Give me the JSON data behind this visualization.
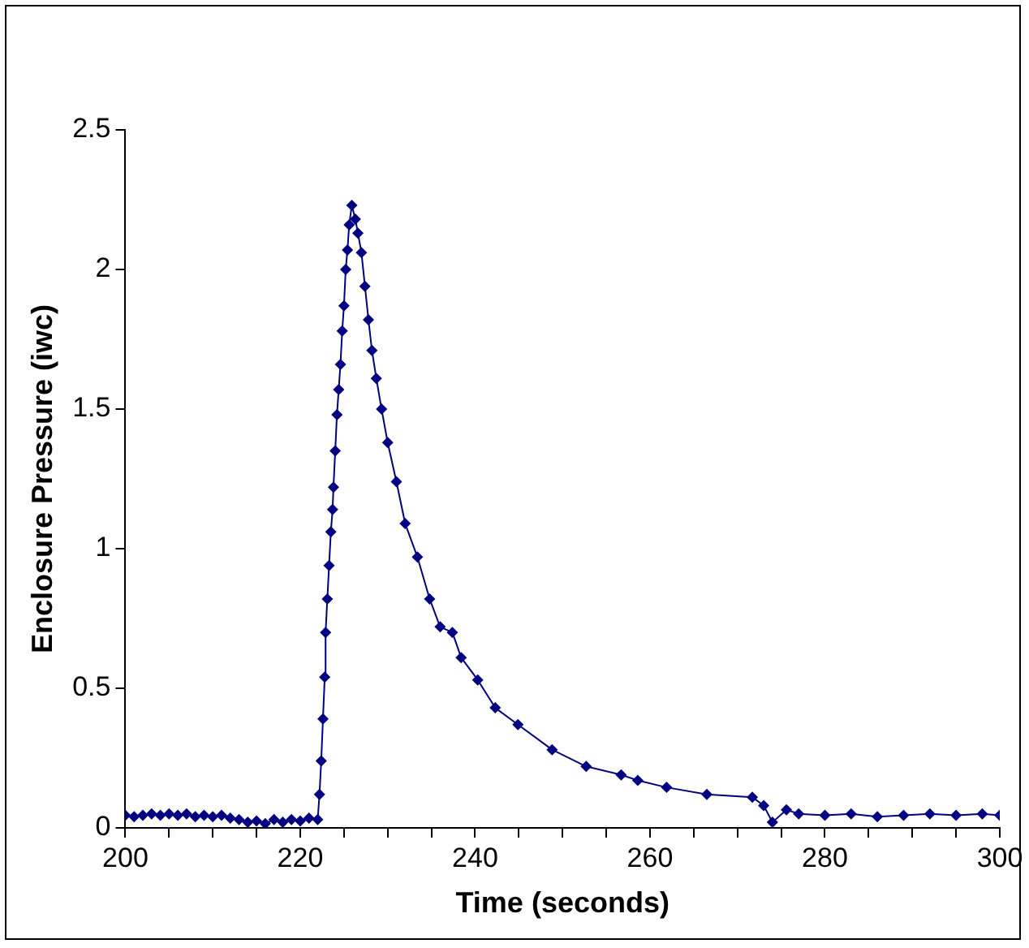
{
  "chart_data": {
    "type": "line",
    "xlabel": "Time (seconds)",
    "ylabel": "Enclosure Pressure (iwc)",
    "x": [
      200,
      201,
      202,
      203,
      204,
      205,
      206,
      207,
      208,
      209,
      210,
      211,
      212,
      213,
      214,
      215,
      216,
      217,
      218,
      219,
      220,
      221,
      222,
      222.2,
      222.4,
      222.6,
      222.8,
      222.9,
      223.1,
      223.3,
      223.5,
      223.7,
      223.8,
      224,
      224.2,
      224.4,
      224.6,
      224.8,
      225,
      225.2,
      225.4,
      225.6,
      225.9,
      226.3,
      226.6,
      227,
      227.4,
      227.8,
      228.2,
      228.7,
      229.3,
      230,
      231,
      232,
      233.4,
      234.8,
      236,
      237.4,
      238.4,
      240.3,
      242.3,
      244.9,
      248.8,
      252.7,
      256.7,
      258.6,
      261.9,
      266.5,
      271.7,
      273,
      274,
      275.6,
      277,
      280,
      283,
      286,
      289,
      292,
      295,
      298,
      300
    ],
    "series": [
      {
        "color": "#000080",
        "values": [
          0.045,
          0.04,
          0.045,
          0.05,
          0.045,
          0.05,
          0.045,
          0.05,
          0.04,
          0.045,
          0.04,
          0.045,
          0.035,
          0.03,
          0.02,
          0.025,
          0.015,
          0.03,
          0.02,
          0.03,
          0.025,
          0.035,
          0.03,
          0.12,
          0.24,
          0.39,
          0.54,
          0.7,
          0.82,
          0.94,
          1.06,
          1.14,
          1.22,
          1.35,
          1.48,
          1.57,
          1.66,
          1.78,
          1.87,
          2,
          2.07,
          2.16,
          2.23,
          2.18,
          2.13,
          2.06,
          1.94,
          1.82,
          1.71,
          1.61,
          1.5,
          1.38,
          1.24,
          1.09,
          0.97,
          0.82,
          0.72,
          0.7,
          0.61,
          0.53,
          0.43,
          0.37,
          0.28,
          0.22,
          0.19,
          0.17,
          0.145,
          0.12,
          0.11,
          0.08,
          0.02,
          0.065,
          0.05,
          0.045,
          0.05,
          0.04,
          0.045,
          0.05,
          0.045,
          0.05,
          0.045
        ]
      }
    ],
    "xlim": [
      200,
      300
    ],
    "xticks": [
      200,
      {
        "value": 205,
        "label": null
      },
      {
        "value": 210,
        "label": null
      },
      {
        "value": 215,
        "label": null
      },
      220,
      {
        "value": 225,
        "label": null
      },
      {
        "value": 230,
        "label": null
      },
      {
        "value": 235,
        "label": null
      },
      240,
      {
        "value": 245,
        "label": null
      },
      {
        "value": 250,
        "label": null
      },
      {
        "value": 255,
        "label": null
      },
      260,
      {
        "value": 265,
        "label": null
      },
      {
        "value": 270,
        "label": null
      },
      {
        "value": 275,
        "label": null
      },
      280,
      {
        "value": 285,
        "label": null
      },
      {
        "value": 290,
        "label": null
      },
      {
        "value": 295,
        "label": null
      },
      300
    ],
    "ylim": [
      0,
      2.5
    ],
    "yticks": [
      0,
      0.5,
      1,
      1.5,
      2,
      2.5
    ],
    "grid": false,
    "legend": false,
    "marker": "diamond",
    "line_style": "solid"
  }
}
